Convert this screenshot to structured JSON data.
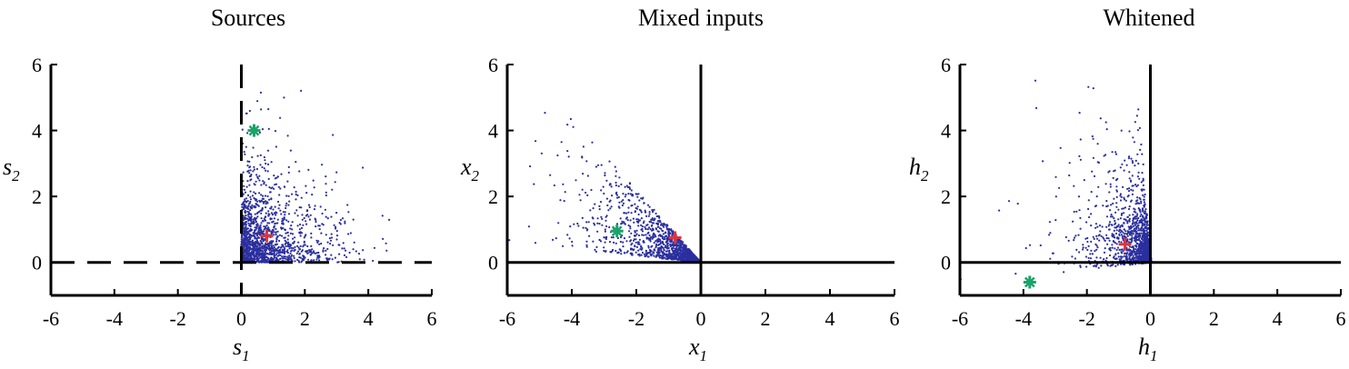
{
  "figure": {
    "colors": {
      "points": "#2b2f9e",
      "mean_marker": "#e0333b",
      "special_marker": "#1aa36a",
      "axes": "#000000"
    }
  },
  "chart_data": [
    {
      "type": "scatter",
      "title": "Sources",
      "xlabel": "s",
      "xlabel_sub": "1",
      "ylabel": "s",
      "ylabel_sub": "2",
      "xlim": [
        -6,
        6
      ],
      "ylim": [
        -1,
        6
      ],
      "xticks": [
        "-6",
        "-4",
        "-2",
        "0",
        "2",
        "4",
        "6"
      ],
      "yticks": [
        "0",
        "2",
        "4",
        "6"
      ],
      "zero_lines": "dashed",
      "grid": false,
      "n_points": 1500,
      "distribution": "nonnegative sources, s1 >= 0 and s2 >= 0, dense near origin, sparse up to about 6",
      "markers": [
        {
          "name": "red-cross",
          "x": 0.8,
          "y": 0.8
        },
        {
          "name": "green-asterisk",
          "x": 0.4,
          "y": 4.0
        }
      ]
    },
    {
      "type": "scatter",
      "title": "Mixed inputs",
      "xlabel": "x",
      "xlabel_sub": "1",
      "ylabel": "x",
      "ylabel_sub": "2",
      "xlim": [
        -6,
        6
      ],
      "ylim": [
        -1,
        6
      ],
      "xticks": [
        "-6",
        "-4",
        "-2",
        "0",
        "2",
        "4",
        "6"
      ],
      "yticks": [
        "0",
        "2",
        "4",
        "6"
      ],
      "zero_lines": "solid",
      "grid": false,
      "n_points": 1500,
      "distribution": "wedge in second quadrant between slopes about -0.1 and -1.1, converging at origin",
      "markers": [
        {
          "name": "red-cross",
          "x": -0.8,
          "y": 0.75
        },
        {
          "name": "green-asterisk",
          "x": -2.6,
          "y": 0.95
        }
      ]
    },
    {
      "type": "scatter",
      "title": "Whitened",
      "xlabel": "h",
      "xlabel_sub": "1",
      "ylabel": "h",
      "ylabel_sub": "2",
      "xlim": [
        -6,
        6
      ],
      "ylim": [
        -1,
        6
      ],
      "xticks": [
        "-6",
        "-4",
        "-2",
        "0",
        "2",
        "4",
        "6"
      ],
      "yticks": [
        "0",
        "2",
        "4",
        "6"
      ],
      "zero_lines": "solid",
      "grid": false,
      "n_points": 1500,
      "distribution": "wedge mostly left of the vertical axis, dense near origin, fanning upward and leftward",
      "markers": [
        {
          "name": "red-cross",
          "x": -0.8,
          "y": 0.55
        },
        {
          "name": "green-asterisk",
          "x": -3.8,
          "y": -0.6
        }
      ]
    }
  ]
}
